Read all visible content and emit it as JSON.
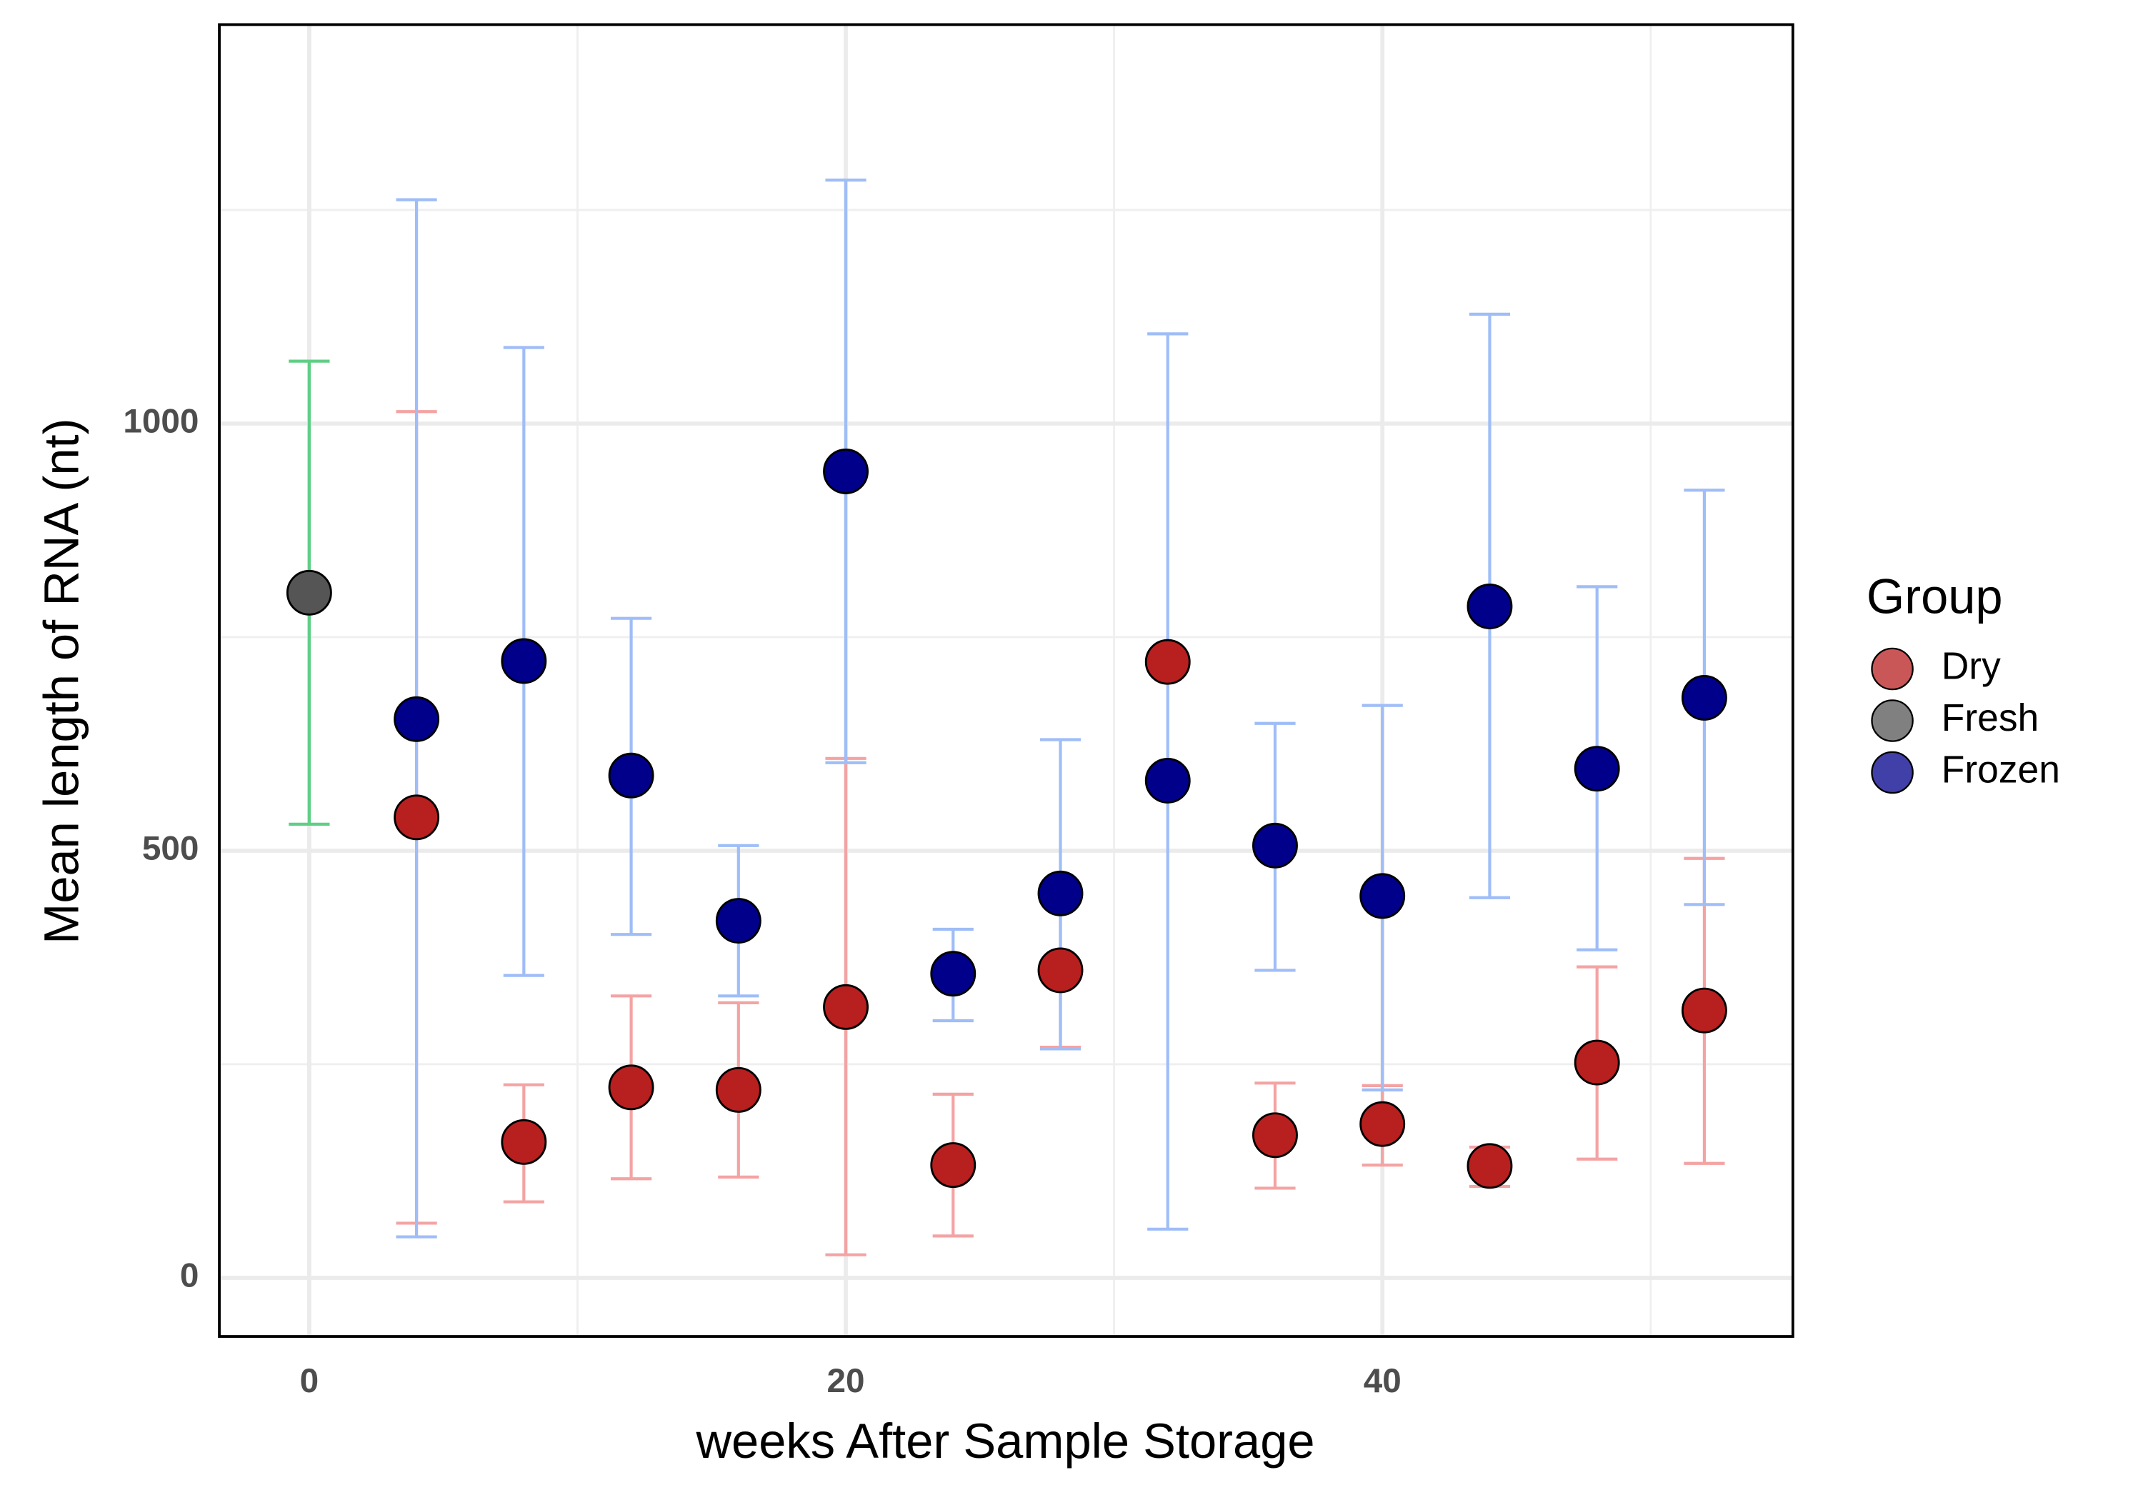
{
  "chart_data": {
    "type": "scatter",
    "x_label": "weeks After Sample Storage",
    "y_label": "Mean length of RNA (nt)",
    "legend_title": "Group",
    "legend_position": "right",
    "grid": true,
    "xlim": [
      -3.35,
      55.3
    ],
    "ylim": [
      -68.6,
      1467
    ],
    "xticks": [
      0,
      20,
      40
    ],
    "yticks": [
      0,
      500,
      1000
    ],
    "x_minor_grid": [
      10,
      30,
      50
    ],
    "y_minor_grid": [
      250,
      750,
      1250
    ],
    "series": [
      {
        "name": "Dry",
        "color": "#b81f1f",
        "error_color": "#f4a3a3",
        "x": [
          4,
          8,
          12,
          16,
          20,
          24,
          28,
          32,
          36,
          40,
          44,
          48,
          52
        ],
        "values": [
          539,
          159,
          223,
          220,
          317,
          132,
          360,
          721,
          167,
          180,
          131,
          252,
          313
        ],
        "ymin": [
          64,
          89,
          116,
          118,
          27,
          49,
          270,
          null,
          105,
          132,
          107,
          139,
          134
        ],
        "ymax": [
          1014,
          226,
          330,
          322,
          608,
          215,
          447,
          null,
          228,
          225,
          153,
          364,
          491
        ]
      },
      {
        "name": "Fresh",
        "color": "#555555",
        "error_color": "#5fcf85",
        "x": [
          0
        ],
        "values": [
          802
        ],
        "ymin": [
          531
        ],
        "ymax": [
          1073
        ]
      },
      {
        "name": "Frozen",
        "color": "#00008b",
        "error_color": "#9fbdf7",
        "x": [
          4,
          8,
          12,
          16,
          20,
          24,
          28,
          32,
          36,
          40,
          44,
          48,
          52
        ],
        "values": [
          654,
          722,
          588,
          418,
          944,
          356,
          450,
          582,
          506,
          447,
          786,
          596,
          679
        ],
        "ymin": [
          48,
          354,
          402,
          330,
          603,
          301,
          268,
          57,
          360,
          220,
          445,
          384,
          437
        ],
        "ymax": [
          1262,
          1089,
          772,
          506,
          1285,
          408,
          630,
          1105,
          649,
          670,
          1128,
          809,
          922
        ]
      }
    ]
  }
}
